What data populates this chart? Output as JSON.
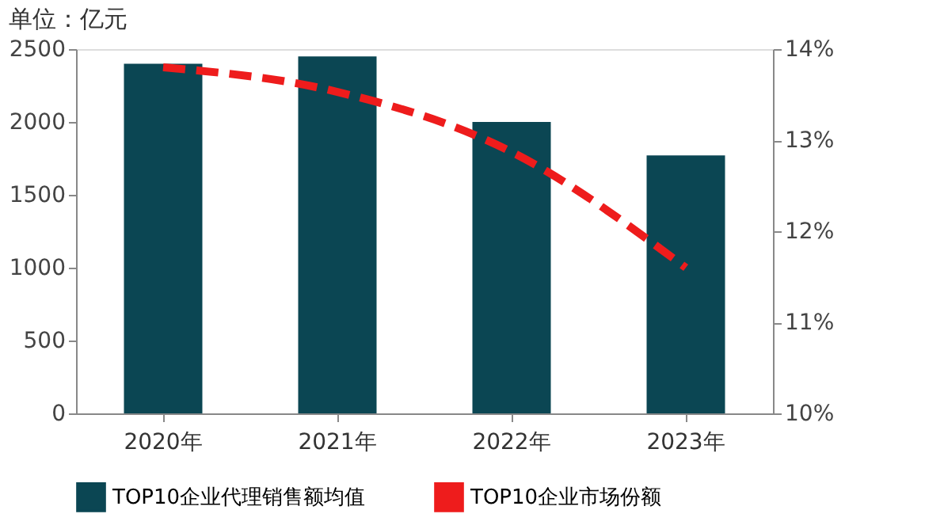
{
  "chart_data": {
    "type": "bar",
    "ylabel": "单位：亿元",
    "categories": [
      "2020年",
      "2021年",
      "2022年",
      "2023年"
    ],
    "series": [
      {
        "name": "TOP10企业代理销售额均值",
        "color": "#0b4653",
        "values": [
          2400,
          2450,
          2000,
          1770
        ]
      },
      {
        "name": "TOP10企业市场份额",
        "type": "line",
        "axis": "y2",
        "color": "#ee1c1c",
        "line_style": "dashed",
        "values": [
          13.8,
          13.53,
          12.87,
          11.6
        ]
      }
    ],
    "ylim": [
      0,
      2500
    ],
    "yticks": [
      0,
      500,
      1000,
      1500,
      2000,
      2500
    ],
    "y2lim": [
      10,
      14
    ],
    "y2ticks": [
      {
        "value": 10,
        "label": "10%"
      },
      {
        "value": 11,
        "label": "11%"
      },
      {
        "value": 12,
        "label": "12%"
      },
      {
        "value": 13,
        "label": "13%"
      },
      {
        "value": 14,
        "label": "14%"
      }
    ],
    "grid": false,
    "legend": "bottom"
  }
}
